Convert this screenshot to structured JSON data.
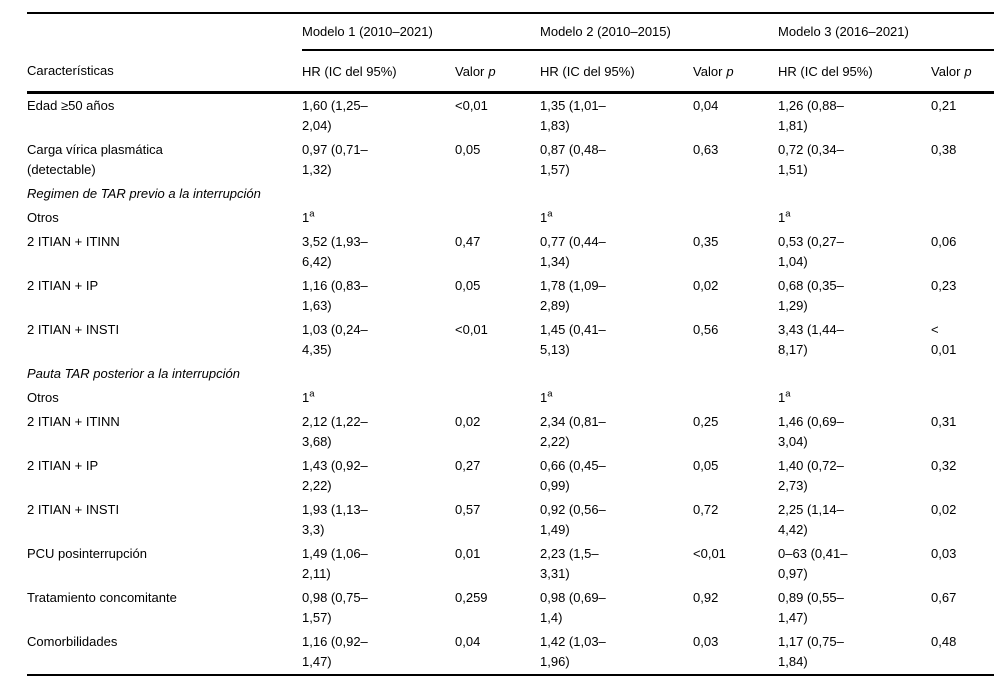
{
  "colors": {
    "background": "#ffffff",
    "text": "#000000",
    "rule": "#000000"
  },
  "table": {
    "col_header": "Características",
    "models": [
      {
        "label": "Modelo 1 (2010–2021)"
      },
      {
        "label": "Modelo 2 (2010–2015)"
      },
      {
        "label": "Modelo 3 (2016–2021)"
      }
    ],
    "subheaders": {
      "hr": "HR (IC del 95%)",
      "valor": "Valor",
      "p": "p"
    },
    "rows": [
      {
        "type": "data",
        "label": "Edad ≥50 años",
        "m1": {
          "hr": "1,60 (1,25–2,04)",
          "p": "<0,01"
        },
        "m2": {
          "hr": "1,35 (1,01–1,83)",
          "p": "0,04"
        },
        "m3": {
          "hr": "1,26 (0,88–1,81)",
          "p": "0,21"
        }
      },
      {
        "type": "data",
        "label": "Carga vírica plasmática (detectable)",
        "m1": {
          "hr": "0,97 (0,71–1,32)",
          "p": "0,05"
        },
        "m2": {
          "hr": "0,87 (0,48–1,57)",
          "p": "0,63"
        },
        "m3": {
          "hr": "0,72 (0,34–1,51)",
          "p": "0,38"
        }
      },
      {
        "type": "section",
        "label": "Regimen de TAR previo a la interrupción"
      },
      {
        "type": "data",
        "label": "Otros",
        "m1": {
          "hr": "1",
          "sup": "a",
          "p": ""
        },
        "m2": {
          "hr": "1",
          "sup": "a",
          "p": ""
        },
        "m3": {
          "hr": "1",
          "sup": "a",
          "p": ""
        }
      },
      {
        "type": "data",
        "label": "2 ITIAN + ITINN",
        "m1": {
          "hr": "3,52 (1,93–6,42)",
          "p": "0,47"
        },
        "m2": {
          "hr": "0,77 (0,44–1,34)",
          "p": "0,35"
        },
        "m3": {
          "hr": "0,53 (0,27–1,04)",
          "p": "0,06"
        }
      },
      {
        "type": "data",
        "label": "2 ITIAN + IP",
        "m1": {
          "hr": "1,16 (0,83–1,63)",
          "p": "0,05"
        },
        "m2": {
          "hr": "1,78 (1,09–2,89)",
          "p": "0,02"
        },
        "m3": {
          "hr": "0,68 (0,35–1,29)",
          "p": "0,23"
        }
      },
      {
        "type": "data",
        "label": "2 ITIAN + INSTI",
        "m1": {
          "hr": "1,03 (0,24–4,35)",
          "p": "<0,01"
        },
        "m2": {
          "hr": "1,45 (0,41–5,13)",
          "p": "0,56"
        },
        "m3": {
          "hr": "3,43 (1,44–8,17)",
          "p": "< 0,01"
        }
      },
      {
        "type": "section",
        "label": "Pauta TAR posterior a la interrupción"
      },
      {
        "type": "data",
        "label": "Otros",
        "m1": {
          "hr": "1",
          "sup": "a",
          "p": ""
        },
        "m2": {
          "hr": "1",
          "sup": "a",
          "p": ""
        },
        "m3": {
          "hr": "1",
          "sup": "a",
          "p": ""
        }
      },
      {
        "type": "data",
        "label": "2 ITIAN + ITINN",
        "m1": {
          "hr": "2,12 (1,22–3,68)",
          "p": "0,02"
        },
        "m2": {
          "hr": "2,34 (0,81–2,22)",
          "p": "0,25"
        },
        "m3": {
          "hr": "1,46 (0,69–3,04)",
          "p": "0,31"
        }
      },
      {
        "type": "data",
        "label": "2 ITIAN + IP",
        "m1": {
          "hr": "1,43 (0,92–2,22)",
          "p": "0,27"
        },
        "m2": {
          "hr": "0,66 (0,45–0,99)",
          "p": "0,05"
        },
        "m3": {
          "hr": "1,40 (0,72–2,73)",
          "p": "0,32"
        }
      },
      {
        "type": "data",
        "label": "2 ITIAN + INSTI",
        "m1": {
          "hr": "1,93 (1,13–3,3)",
          "p": "0,57"
        },
        "m2": {
          "hr": "0,92 (0,56–1,49)",
          "p": "0,72"
        },
        "m3": {
          "hr": "2,25 (1,14–4,42)",
          "p": "0,02"
        }
      },
      {
        "type": "data",
        "label": "PCU posinterrupción",
        "m1": {
          "hr": "1,49 (1,06–2,11)",
          "p": "0,01"
        },
        "m2": {
          "hr": "2,23 (1,5–3,31)",
          "p": "<0,01"
        },
        "m3": {
          "hr": "0–63 (0,41–0,97)",
          "p": "0,03"
        }
      },
      {
        "type": "data",
        "label": "Tratamiento concomitante",
        "m1": {
          "hr": "0,98 (0,75–1,57)",
          "p": "0,259"
        },
        "m2": {
          "hr": "0,98 (0,69–1,4)",
          "p": "0,92"
        },
        "m3": {
          "hr": "0,89 (0,55–1,47)",
          "p": "0,67"
        }
      },
      {
        "type": "data",
        "label": "Comorbilidades",
        "m1": {
          "hr": "1,16 (0,92–1,47)",
          "p": "0,04"
        },
        "m2": {
          "hr": "1,42 (1,03–1,96)",
          "p": "0,03"
        },
        "m3": {
          "hr": "1,17 (0,75–1,84)",
          "p": "0,48"
        }
      }
    ]
  }
}
